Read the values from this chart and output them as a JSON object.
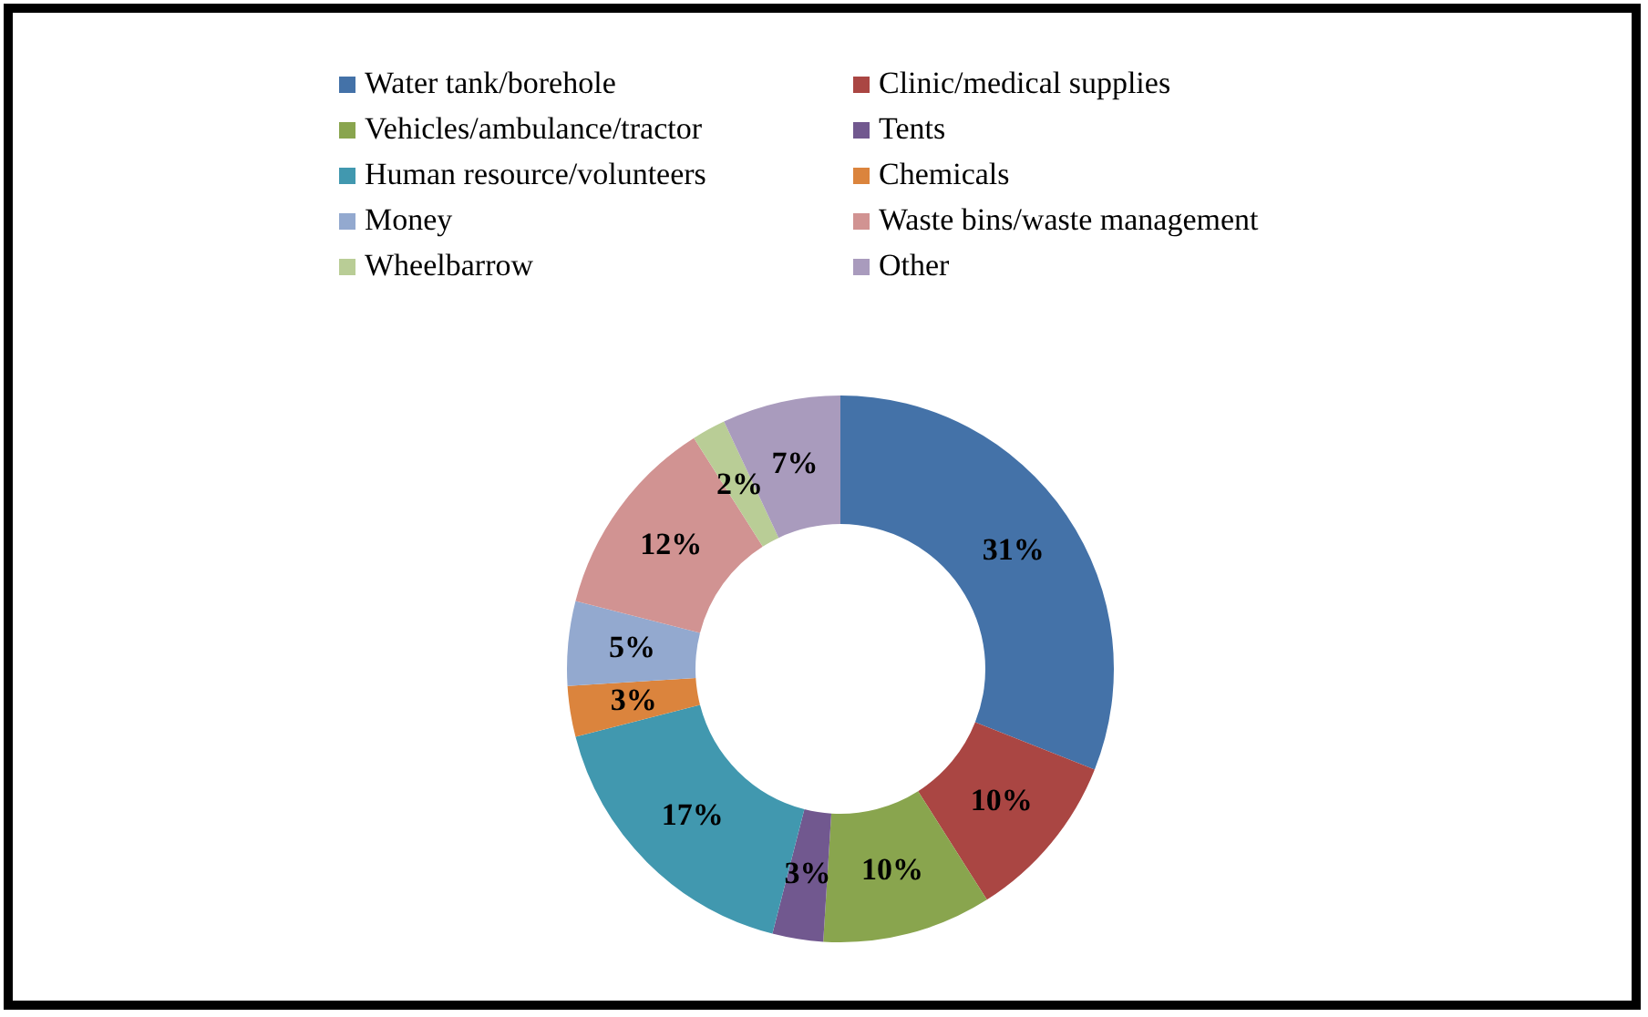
{
  "chart_data": {
    "type": "donut",
    "categories": [
      "Water tank/borehole",
      "Clinic/medical supplies",
      "Vehicles/ambulance/tractor",
      "Tents",
      "Human resource/volunteers",
      "Chemicals",
      "Money",
      "Waste bins/waste management",
      "Wheelbarrow",
      "Other"
    ],
    "values": [
      31,
      10,
      10,
      3,
      17,
      3,
      5,
      12,
      2,
      7
    ],
    "value_labels": [
      "31%",
      "10%",
      "10%",
      "3%",
      "17%",
      "3%",
      "5%",
      "12%",
      "2%",
      "7%"
    ],
    "colors": [
      "#4472a8",
      "#aa4643",
      "#89a54e",
      "#71588f",
      "#4198af",
      "#db843d",
      "#93a9cf",
      "#d19392",
      "#b9cd96",
      "#a99bbd"
    ],
    "legend": "top"
  }
}
